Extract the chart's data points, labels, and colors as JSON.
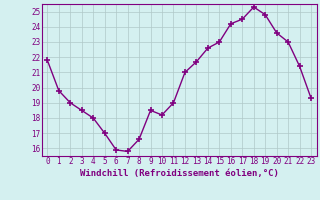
{
  "x": [
    0,
    1,
    2,
    3,
    4,
    5,
    6,
    7,
    8,
    9,
    10,
    11,
    12,
    13,
    14,
    15,
    16,
    17,
    18,
    19,
    20,
    21,
    22,
    23
  ],
  "y": [
    21.8,
    19.8,
    19.0,
    18.5,
    18.0,
    17.0,
    15.9,
    15.8,
    16.6,
    18.5,
    18.2,
    19.0,
    21.0,
    21.7,
    22.6,
    23.0,
    24.2,
    24.5,
    25.3,
    24.8,
    23.6,
    23.0,
    21.4,
    19.3
  ],
  "line_color": "#800080",
  "marker": "+",
  "marker_size": 5,
  "background_color": "#d4f0f0",
  "grid_color": "#b0c8c8",
  "xlabel": "Windchill (Refroidissement éolien,°C)",
  "xlabel_color": "#800080",
  "ylim": [
    15.5,
    25.5
  ],
  "yticks": [
    16,
    17,
    18,
    19,
    20,
    21,
    22,
    23,
    24,
    25
  ],
  "xtick_labels": [
    "0",
    "1",
    "2",
    "3",
    "4",
    "5",
    "6",
    "7",
    "8",
    "9",
    "10",
    "11",
    "12",
    "13",
    "14",
    "15",
    "16",
    "17",
    "18",
    "19",
    "20",
    "21",
    "22",
    "23"
  ],
  "tick_label_fontsize": 5.5,
  "xlabel_fontsize": 6.5,
  "linewidth": 1.0
}
